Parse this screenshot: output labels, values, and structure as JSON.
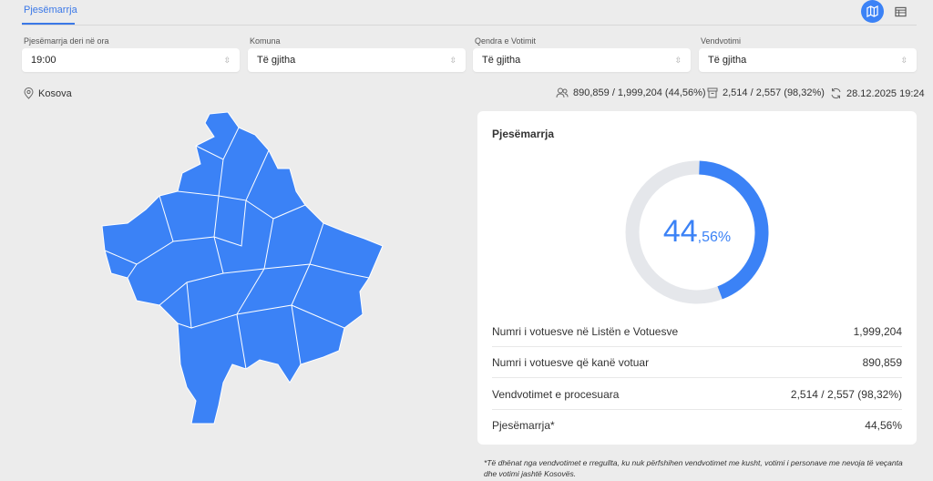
{
  "tabs": [
    {
      "label": "Pjesëmarrja",
      "active": true
    }
  ],
  "view_toggle": {
    "map_icon": "map-icon",
    "table_icon": "table-icon",
    "active": "map"
  },
  "filters": [
    {
      "label": "Pjesëmarrja deri në ora",
      "value": "19:00"
    },
    {
      "label": "Komuna",
      "value": "Të gjitha"
    },
    {
      "label": "Qendra e Votimit",
      "value": "Të gjitha"
    },
    {
      "label": "Vendvotimi",
      "value": "Të gjitha"
    }
  ],
  "location": "Kosova",
  "stats": {
    "voters": "890,859 / 1,999,204 (44,56%)",
    "stations": "2,514 / 2,557 (98,32%)",
    "updated": "28.12.2025 19:24"
  },
  "card": {
    "title": "Pjesëmarrja",
    "percent_int": "44",
    "percent_dec": ",56%",
    "percent_value": 44.56,
    "rows": [
      {
        "label": "Numri i votuesve në Listën e Votuesve",
        "value": "1,999,204"
      },
      {
        "label": "Numri i votuesve që kanë votuar",
        "value": "890,859"
      },
      {
        "label": "Vendvotimet e procesuara",
        "value": "2,514 / 2,557 (98,32%)"
      },
      {
        "label": "Pjesëmarrja*",
        "value": "44,56%"
      }
    ]
  },
  "footnote": "*Të dhënat nga vendvotimet e rregullta, ku nuk përfshihen vendvotimet me kusht, votimi i personave me nevoja të veçanta dhe votimi jashtë Kosovës.",
  "colors": {
    "accent": "#3b82f6",
    "map_fill": "#3b82f6",
    "track": "#e5e7eb"
  }
}
